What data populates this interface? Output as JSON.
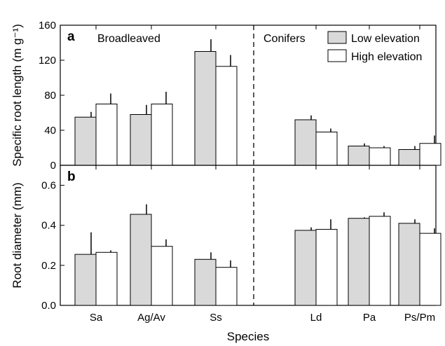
{
  "chart_data": [
    {
      "type": "bar",
      "panel": "a",
      "categories": [
        "Sa",
        "Ag/Av",
        "Ss",
        "Ld",
        "Pa",
        "Ps/Pm"
      ],
      "series": [
        {
          "name": "Low elevation",
          "values": [
            55,
            58,
            130,
            52,
            22,
            18
          ],
          "errors": [
            6,
            11,
            14,
            5,
            3,
            4
          ],
          "color": "#d9d9d9"
        },
        {
          "name": "High elevation",
          "values": [
            70,
            70,
            113,
            38,
            20,
            25
          ],
          "errors": [
            12,
            14,
            13,
            4,
            2,
            9
          ],
          "color": "#ffffff"
        }
      ],
      "ylabel": "Specific root length (m g⁻¹)",
      "ylim": [
        0,
        160
      ],
      "yticks": [
        0,
        40,
        80,
        120,
        160
      ],
      "group_labels": [
        "Broadleaved",
        "Conifers"
      ],
      "legend_placement": "top-right"
    },
    {
      "type": "bar",
      "panel": "b",
      "categories": [
        "Sa",
        "Ag/Av",
        "Ss",
        "Ld",
        "Pa",
        "Ps/Pm"
      ],
      "series": [
        {
          "name": "Low elevation",
          "values": [
            0.255,
            0.455,
            0.23,
            0.375,
            0.435,
            0.41
          ],
          "errors": [
            0.11,
            0.05,
            0.035,
            0.015,
            0.005,
            0.02
          ],
          "color": "#d9d9d9"
        },
        {
          "name": "High elevation",
          "values": [
            0.265,
            0.295,
            0.19,
            0.38,
            0.445,
            0.36
          ],
          "errors": [
            0.01,
            0.035,
            0.035,
            0.05,
            0.02,
            0.025
          ],
          "color": "#ffffff"
        }
      ],
      "ylabel": "Root diameter (mm)",
      "ylim": [
        0,
        0.7
      ],
      "yticks": [
        0.0,
        0.2,
        0.4,
        0.6
      ],
      "xlabel": "Species"
    }
  ],
  "tick_text": {
    "a": [
      "0",
      "40",
      "80",
      "120",
      "160"
    ],
    "b": [
      "0.0",
      "0.2",
      "0.4",
      "0.6"
    ]
  }
}
